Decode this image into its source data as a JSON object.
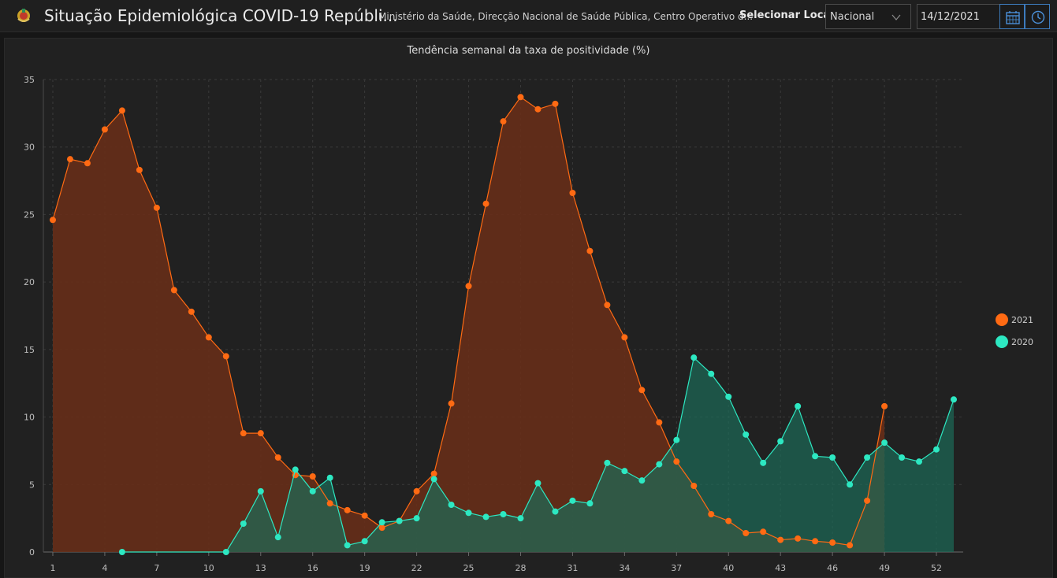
{
  "header": {
    "title": "Situação Epidemiológica COVID-19 Repúbli...",
    "subtitle": "Ministério da Saúde, Direcção Nacional de Saúde Pública, Centro Operativo d...",
    "location_label": "Selecionar Local",
    "location_value": "Nacional",
    "date_value": "14/12/2021",
    "icons": [
      "emblem-logo",
      "calendar-icon",
      "clock-icon"
    ]
  },
  "colors": {
    "series_2021": "#ff6a13",
    "series_2020": "#2de8c2",
    "fill_2021": "#6a2e17",
    "fill_2020": "#1d6b58",
    "grid": "#3a3a3a"
  },
  "chart_data": {
    "type": "area",
    "title": "Tendência semanal da taxa de positividade (%)",
    "xlim": [
      1,
      53
    ],
    "ylim": [
      0,
      35
    ],
    "yticks": [
      0,
      5,
      10,
      15,
      20,
      25,
      30,
      35
    ],
    "xticks": [
      1,
      4,
      7,
      10,
      13,
      16,
      19,
      22,
      25,
      28,
      31,
      34,
      37,
      40,
      43,
      46,
      49,
      52
    ],
    "legend_position": "right",
    "series": [
      {
        "name": "2021",
        "x": [
          1,
          2,
          3,
          4,
          5,
          6,
          7,
          8,
          9,
          10,
          11,
          12,
          13,
          14,
          15,
          16,
          17,
          18,
          19,
          20,
          21,
          22,
          23,
          24,
          25,
          26,
          27,
          28,
          29,
          30,
          31,
          32,
          33,
          34,
          35,
          36,
          37,
          38,
          39,
          40,
          41,
          42,
          43,
          44,
          45,
          46,
          47,
          48,
          49
        ],
        "values": [
          24.6,
          29.1,
          28.8,
          31.3,
          32.7,
          28.3,
          25.5,
          19.4,
          17.8,
          15.9,
          14.5,
          8.8,
          8.8,
          7.0,
          5.7,
          5.6,
          3.6,
          3.1,
          2.7,
          1.8,
          2.3,
          4.5,
          5.8,
          11.0,
          19.7,
          25.8,
          31.9,
          33.7,
          32.8,
          33.2,
          26.6,
          22.3,
          18.3,
          15.9,
          12.0,
          9.6,
          6.7,
          4.9,
          2.8,
          2.3,
          1.4,
          1.5,
          0.9,
          1.0,
          0.8,
          0.7,
          0.5,
          3.8,
          10.8
        ]
      },
      {
        "name": "2020",
        "x": [
          5,
          11,
          12,
          13,
          14,
          15,
          16,
          17,
          18,
          19,
          20,
          21,
          22,
          23,
          24,
          25,
          26,
          27,
          28,
          29,
          30,
          31,
          32,
          33,
          34,
          35,
          36,
          37,
          38,
          39,
          40,
          41,
          42,
          43,
          44,
          45,
          46,
          47,
          48,
          49,
          50,
          51,
          52,
          53
        ],
        "values": [
          0.0,
          0.0,
          2.1,
          4.5,
          1.1,
          6.1,
          4.5,
          5.5,
          0.5,
          0.8,
          2.2,
          2.3,
          2.5,
          5.4,
          3.5,
          2.9,
          2.6,
          2.8,
          2.5,
          5.1,
          3.0,
          3.8,
          3.6,
          6.6,
          6.0,
          5.3,
          6.5,
          8.3,
          14.4,
          13.2,
          11.5,
          8.7,
          6.6,
          8.2,
          10.8,
          7.1,
          7.0,
          5.0,
          7.0,
          8.1,
          7.0,
          6.7,
          7.6,
          11.3
        ]
      }
    ]
  }
}
